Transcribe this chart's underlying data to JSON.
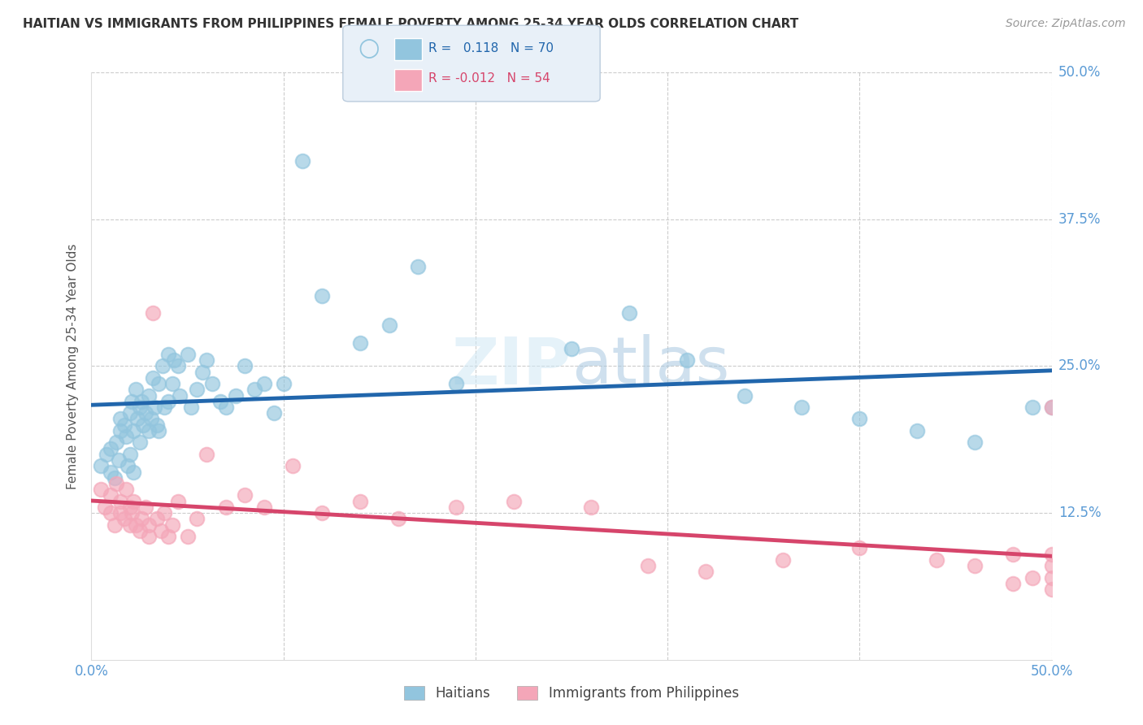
{
  "title": "HAITIAN VS IMMIGRANTS FROM PHILIPPINES FEMALE POVERTY AMONG 25-34 YEAR OLDS CORRELATION CHART",
  "source": "Source: ZipAtlas.com",
  "ylabel": "Female Poverty Among 25-34 Year Olds",
  "xlim": [
    0,
    0.5
  ],
  "ylim": [
    0,
    0.5
  ],
  "grid_color": "#cccccc",
  "background_color": "#ffffff",
  "blue_color": "#92c5de",
  "pink_color": "#f4a6b8",
  "blue_line_color": "#2166ac",
  "pink_line_color": "#d6456b",
  "title_color": "#333333",
  "axis_label_color": "#5b9bd5",
  "right_tick_color": "#5b9bd5",
  "legend_box_color": "#ddeeff",
  "haitians_x": [
    0.005,
    0.008,
    0.01,
    0.01,
    0.012,
    0.013,
    0.014,
    0.015,
    0.015,
    0.017,
    0.018,
    0.019,
    0.02,
    0.02,
    0.021,
    0.022,
    0.022,
    0.023,
    0.024,
    0.025,
    0.025,
    0.026,
    0.027,
    0.028,
    0.03,
    0.03,
    0.031,
    0.032,
    0.033,
    0.034,
    0.035,
    0.035,
    0.037,
    0.038,
    0.04,
    0.04,
    0.042,
    0.043,
    0.045,
    0.046,
    0.05,
    0.052,
    0.055,
    0.058,
    0.06,
    0.063,
    0.067,
    0.07,
    0.075,
    0.08,
    0.085,
    0.09,
    0.095,
    0.1,
    0.11,
    0.12,
    0.14,
    0.155,
    0.17,
    0.19,
    0.25,
    0.28,
    0.31,
    0.34,
    0.37,
    0.4,
    0.43,
    0.46,
    0.49,
    0.5
  ],
  "haitians_y": [
    0.165,
    0.175,
    0.16,
    0.18,
    0.155,
    0.185,
    0.17,
    0.195,
    0.205,
    0.2,
    0.19,
    0.165,
    0.21,
    0.175,
    0.22,
    0.195,
    0.16,
    0.23,
    0.205,
    0.215,
    0.185,
    0.22,
    0.2,
    0.21,
    0.225,
    0.195,
    0.205,
    0.24,
    0.215,
    0.2,
    0.235,
    0.195,
    0.25,
    0.215,
    0.26,
    0.22,
    0.235,
    0.255,
    0.25,
    0.225,
    0.26,
    0.215,
    0.23,
    0.245,
    0.255,
    0.235,
    0.22,
    0.215,
    0.225,
    0.25,
    0.23,
    0.235,
    0.21,
    0.235,
    0.425,
    0.31,
    0.27,
    0.285,
    0.335,
    0.235,
    0.265,
    0.295,
    0.255,
    0.225,
    0.215,
    0.205,
    0.195,
    0.185,
    0.215,
    0.215
  ],
  "philippines_x": [
    0.005,
    0.007,
    0.01,
    0.01,
    0.012,
    0.013,
    0.015,
    0.015,
    0.017,
    0.018,
    0.02,
    0.02,
    0.021,
    0.022,
    0.023,
    0.025,
    0.026,
    0.028,
    0.03,
    0.03,
    0.032,
    0.034,
    0.036,
    0.038,
    0.04,
    0.042,
    0.045,
    0.05,
    0.055,
    0.06,
    0.07,
    0.08,
    0.09,
    0.105,
    0.12,
    0.14,
    0.16,
    0.19,
    0.22,
    0.26,
    0.29,
    0.32,
    0.36,
    0.4,
    0.44,
    0.48,
    0.5,
    0.5,
    0.5,
    0.5,
    0.5,
    0.49,
    0.48,
    0.46
  ],
  "philippines_y": [
    0.145,
    0.13,
    0.125,
    0.14,
    0.115,
    0.15,
    0.125,
    0.135,
    0.12,
    0.145,
    0.13,
    0.115,
    0.125,
    0.135,
    0.115,
    0.11,
    0.12,
    0.13,
    0.115,
    0.105,
    0.295,
    0.12,
    0.11,
    0.125,
    0.105,
    0.115,
    0.135,
    0.105,
    0.12,
    0.175,
    0.13,
    0.14,
    0.13,
    0.165,
    0.125,
    0.135,
    0.12,
    0.13,
    0.135,
    0.13,
    0.08,
    0.075,
    0.085,
    0.095,
    0.085,
    0.09,
    0.08,
    0.07,
    0.06,
    0.09,
    0.215,
    0.07,
    0.065,
    0.08
  ]
}
